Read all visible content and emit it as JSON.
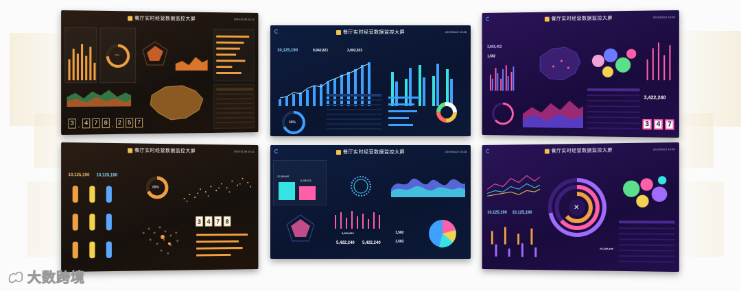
{
  "dashboard_title": "餐厅实时经营数据监控大屏",
  "watermark": "大数跨境",
  "colors": {
    "orange": "#f0a040",
    "blue": "#3ea0ff",
    "purple": "#a06bff",
    "pink": "#ff5fa8",
    "cyan": "#36e2e2"
  },
  "panels": [
    {
      "theme": "orange",
      "date": "2019.01.06 16:12",
      "digits": [
        "3",
        ",",
        "4",
        "7",
        "8",
        ",",
        "2",
        "5",
        "7"
      ],
      "gauge_text": "75%"
    },
    {
      "theme": "blue",
      "date": "2019/01/02 10:28",
      "kpis": [
        "10,125,190",
        "9,942,821",
        "3,002,922"
      ],
      "ring_text": "68%"
    },
    {
      "theme": "purple",
      "date": "2019/01/02 10:28",
      "kpis": [
        "3,802,452",
        "1,582"
      ],
      "big_number": "3,422,240",
      "digits": [
        "3",
        "4",
        "7"
      ]
    },
    {
      "theme": "orange",
      "date": "2019.01.06 16:12",
      "kpis": [
        "10,125,190",
        "10,125,190"
      ],
      "ring_text": "68%",
      "digits": [
        "3",
        "4",
        "7",
        "8"
      ]
    },
    {
      "theme": "blue",
      "date": "2019/01/02 10:28",
      "kpis": [
        "12,399,997",
        "5,208,023",
        "3,002,922",
        "5,422,240",
        "5,422,240",
        "1,582",
        "1,582"
      ]
    },
    {
      "theme": "purple",
      "date": "2019/01/02 10:28",
      "kpis": [
        "10,125,190",
        "10,125,190",
        "16,125,190"
      ]
    }
  ]
}
